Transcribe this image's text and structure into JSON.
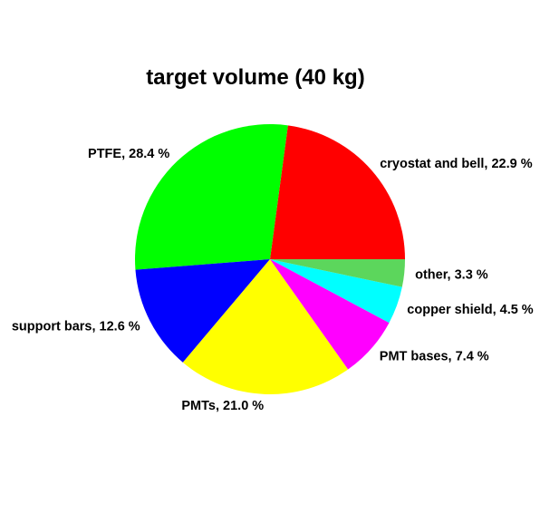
{
  "chart_data": {
    "type": "pie",
    "title": "target volume (40 kg)",
    "start_angle_deg": 0,
    "direction": "counterclockwise",
    "slices": [
      {
        "name": "cryostat and bell",
        "value": 22.9,
        "label": "cryostat and bell, 22.9 %",
        "color": "#FF0000"
      },
      {
        "name": "PTFE",
        "value": 28.4,
        "label": "PTFE, 28.4 %",
        "color": "#00FF00"
      },
      {
        "name": "support bars",
        "value": 12.6,
        "label": "support bars, 12.6 %",
        "color": "#0000FF"
      },
      {
        "name": "PMTs",
        "value": 21.0,
        "label": "PMTs, 21.0 %",
        "color": "#FFFF00"
      },
      {
        "name": "PMT bases",
        "value": 7.4,
        "label": "PMT bases, 7.4 %",
        "color": "#FF00FF"
      },
      {
        "name": "copper shield",
        "value": 4.5,
        "label": "copper shield, 4.5 %",
        "color": "#00FFFF"
      },
      {
        "name": "other",
        "value": 3.3,
        "label": "other, 3.3 %",
        "color": "#5CD65C"
      }
    ]
  }
}
